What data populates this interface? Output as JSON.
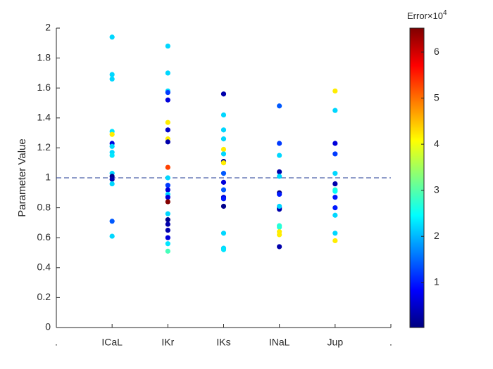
{
  "chart_data": {
    "type": "scatter",
    "ylabel": "Parameter Value",
    "xlim": [
      0,
      6
    ],
    "xticks": [
      {
        "value": 0,
        "label": "."
      },
      {
        "value": 1,
        "label": "ICaL"
      },
      {
        "value": 2,
        "label": "IKr"
      },
      {
        "value": 3,
        "label": "IKs"
      },
      {
        "value": 4,
        "label": "INaL"
      },
      {
        "value": 5,
        "label": "Jup"
      },
      {
        "value": 6,
        "label": "."
      }
    ],
    "ylim": [
      0,
      2
    ],
    "yticks": [
      0,
      0.2,
      0.4,
      0.6,
      0.8,
      1,
      1.2,
      1.4,
      1.6,
      1.8,
      2
    ],
    "reference_line": 1,
    "colormap": "jet",
    "colorbar_label": "Error",
    "colorbar_multiplier": "×10",
    "colorbar_exponent": "4",
    "clim": [
      0.02,
      6.52
    ],
    "cticks": [
      1,
      2,
      3,
      4,
      5,
      6
    ],
    "x": [
      1,
      1,
      1,
      1,
      1,
      1,
      1,
      1,
      1,
      1,
      1,
      1,
      1,
      1,
      1,
      2,
      2,
      2,
      2,
      2,
      2,
      2,
      2,
      2,
      2,
      2,
      2,
      2,
      2,
      2,
      2,
      2,
      2,
      2,
      2,
      2,
      2,
      2,
      3,
      3,
      3,
      3,
      3,
      3,
      3,
      3,
      3,
      3,
      3,
      3,
      3,
      3,
      3,
      3,
      3,
      4,
      4,
      4,
      4,
      4,
      4,
      4,
      4,
      4,
      4,
      4,
      4,
      4,
      4,
      4,
      5,
      5,
      5,
      5,
      5,
      5,
      5,
      5,
      5,
      5,
      5,
      5,
      5
    ],
    "values": [
      1.94,
      1.69,
      1.66,
      1.31,
      1.29,
      1.23,
      1.21,
      1.17,
      1.15,
      1.03,
      1.01,
      0.99,
      0.96,
      0.71,
      0.61,
      1.88,
      1.7,
      1.58,
      1.57,
      1.52,
      1.37,
      1.32,
      1.26,
      1.24,
      1.07,
      1.0,
      0.95,
      0.92,
      0.89,
      0.87,
      0.84,
      0.76,
      0.72,
      0.69,
      0.65,
      0.6,
      0.56,
      0.51,
      1.56,
      1.42,
      1.32,
      1.26,
      1.19,
      1.16,
      1.11,
      1.1,
      1.03,
      0.97,
      0.92,
      0.87,
      0.86,
      0.81,
      0.63,
      0.53,
      0.52,
      1.48,
      1.23,
      1.15,
      1.04,
      1.01,
      0.9,
      0.89,
      0.8,
      0.79,
      0.81,
      0.68,
      0.67,
      0.64,
      0.62,
      0.54,
      1.58,
      1.45,
      1.23,
      1.16,
      1.03,
      0.96,
      0.92,
      0.91,
      0.87,
      0.8,
      0.75,
      0.63,
      0.58
    ],
    "color_values": [
      2.2,
      2.2,
      2.2,
      2.3,
      4.2,
      0.6,
      2.2,
      2.2,
      2.3,
      2.2,
      0.1,
      0.3,
      2.2,
      1.4,
      2.2,
      2.2,
      2.2,
      2.2,
      1.2,
      0.6,
      4.2,
      0.5,
      4.2,
      0.3,
      5.3,
      2.2,
      1.2,
      0.6,
      2.2,
      0.6,
      6.5,
      2.2,
      0.1,
      0.3,
      0.3,
      0.6,
      2.3,
      2.9,
      0.3,
      2.2,
      2.2,
      2.2,
      4.2,
      2.2,
      0.1,
      4.2,
      1.4,
      0.6,
      1.4,
      0.6,
      1.0,
      0.1,
      2.2,
      2.2,
      2.3,
      1.4,
      1.2,
      2.2,
      0.3,
      2.2,
      0.1,
      1.0,
      0.6,
      0.3,
      2.2,
      2.7,
      2.7,
      4.2,
      4.2,
      0.3,
      4.2,
      2.2,
      0.6,
      1.2,
      2.2,
      0.3,
      2.7,
      2.5,
      1.0,
      1.0,
      2.2,
      2.2,
      4.2
    ]
  }
}
